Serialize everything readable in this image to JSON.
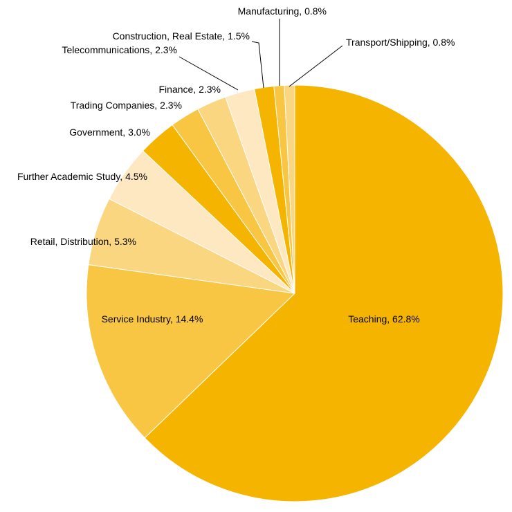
{
  "chart_data": {
    "type": "pie",
    "title": "",
    "slices": [
      {
        "label": "Teaching, 62.8%",
        "name": "Teaching",
        "value": 62.8,
        "color": "#F5B400"
      },
      {
        "label": "Service Industry, 14.4%",
        "name": "Service Industry",
        "value": 14.4,
        "color": "#F8C643"
      },
      {
        "label": "Retail, Distribution, 5.3%",
        "name": "Retail, Distribution",
        "value": 5.3,
        "color": "#FBD680"
      },
      {
        "label": "Further Academic Study, 4.5%",
        "name": "Further Academic Study",
        "value": 4.5,
        "color": "#FEE8C2"
      },
      {
        "label": "Government, 3.0%",
        "name": "Government",
        "value": 3.0,
        "color": "#F5B400"
      },
      {
        "label": "Trading Companies, 2.3%",
        "name": "Trading Companies",
        "value": 2.3,
        "color": "#F8C643"
      },
      {
        "label": "Finance, 2.3%",
        "name": "Finance",
        "value": 2.3,
        "color": "#FBD680"
      },
      {
        "label": "Telecommunications, 2.3%",
        "name": "Telecommunications",
        "value": 2.3,
        "color": "#FEE8C2"
      },
      {
        "label": "Construction, Real Estate, 1.5%",
        "name": "Construction, Real Estate",
        "value": 1.5,
        "color": "#F5B400"
      },
      {
        "label": "Manufacturing, 0.8%",
        "name": "Manufacturing",
        "value": 0.8,
        "color": "#F8C643"
      },
      {
        "label": "Transport/Shipping, 0.8%",
        "name": "Transport/Shipping",
        "value": 0.8,
        "color": "#FBD680"
      }
    ],
    "legend": "none",
    "label_position": "on-slice and outside with leader lines"
  }
}
